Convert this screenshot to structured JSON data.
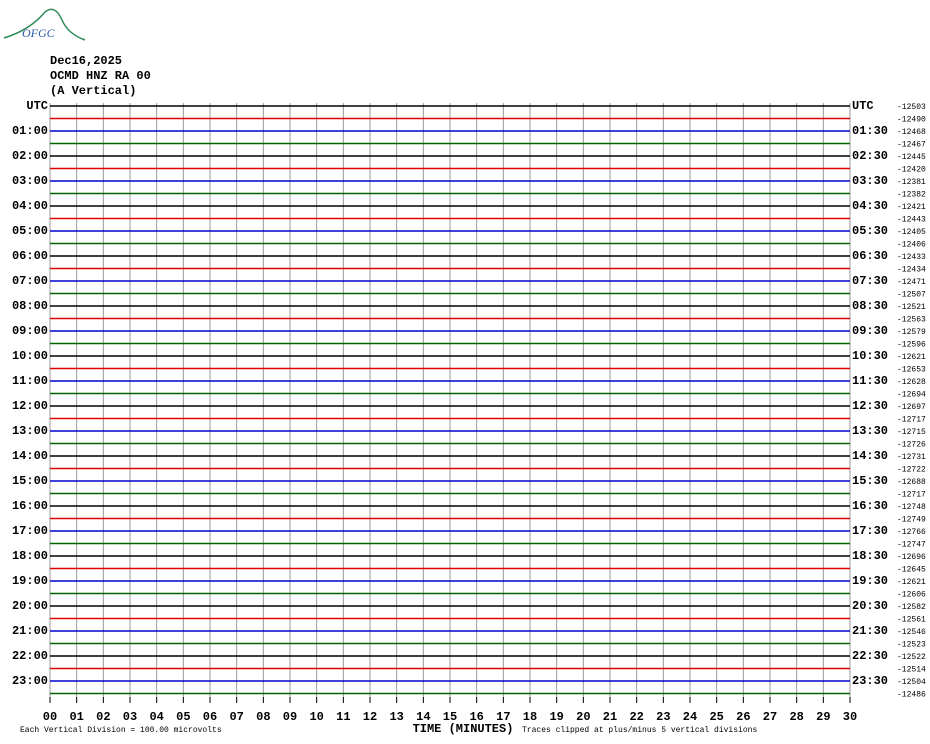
{
  "logo": "OFGC",
  "header": {
    "date": "Dec16,2025",
    "station": "OCMD HNZ RA 00",
    "component": "(A Vertical)"
  },
  "left_labels": [
    "UTC",
    "01:00",
    "02:00",
    "03:00",
    "04:00",
    "05:00",
    "06:00",
    "07:00",
    "08:00",
    "09:00",
    "10:00",
    "11:00",
    "12:00",
    "13:00",
    "14:00",
    "15:00",
    "16:00",
    "17:00",
    "18:00",
    "19:00",
    "20:00",
    "21:00",
    "22:00",
    "23:00"
  ],
  "right_labels": [
    "UTC",
    "01:30",
    "02:30",
    "03:30",
    "04:30",
    "05:30",
    "06:30",
    "07:30",
    "08:30",
    "09:30",
    "10:30",
    "11:30",
    "12:30",
    "13:30",
    "14:30",
    "15:30",
    "16:30",
    "17:30",
    "18:30",
    "19:30",
    "20:30",
    "21:30",
    "22:30",
    "23:30"
  ],
  "trace_offsets": [
    -12503,
    -12490,
    -12468,
    -12467,
    -12445,
    -12420,
    -12381,
    -12382,
    -12421,
    -12443,
    -12405,
    -12406,
    -12433,
    -12434,
    -12471,
    -12507,
    -12521,
    -12563,
    -12579,
    -12596,
    -12621,
    -12653,
    -12628,
    -12694,
    -12697,
    -12717,
    -12715,
    -12726,
    -12731,
    -12722,
    -12688,
    -12717,
    -12748,
    -12749,
    -12766,
    -12747,
    -12696,
    -12645,
    -12621,
    -12606,
    -12582,
    -12561,
    -12546,
    -12523,
    -12522,
    -12514,
    -12504,
    -12486
  ],
  "x_ticks": [
    "00",
    "01",
    "02",
    "03",
    "04",
    "05",
    "06",
    "07",
    "08",
    "09",
    "10",
    "11",
    "12",
    "13",
    "14",
    "15",
    "16",
    "17",
    "18",
    "19",
    "20",
    "21",
    "22",
    "23",
    "24",
    "25",
    "26",
    "27",
    "28",
    "29",
    "30"
  ],
  "footer": {
    "scale": "Each Vertical Division =  100.00 microvolts",
    "x_label": "TIME (MINUTES)",
    "clip_note": "Traces clipped at plus/minus 5 vertical divisions"
  }
}
